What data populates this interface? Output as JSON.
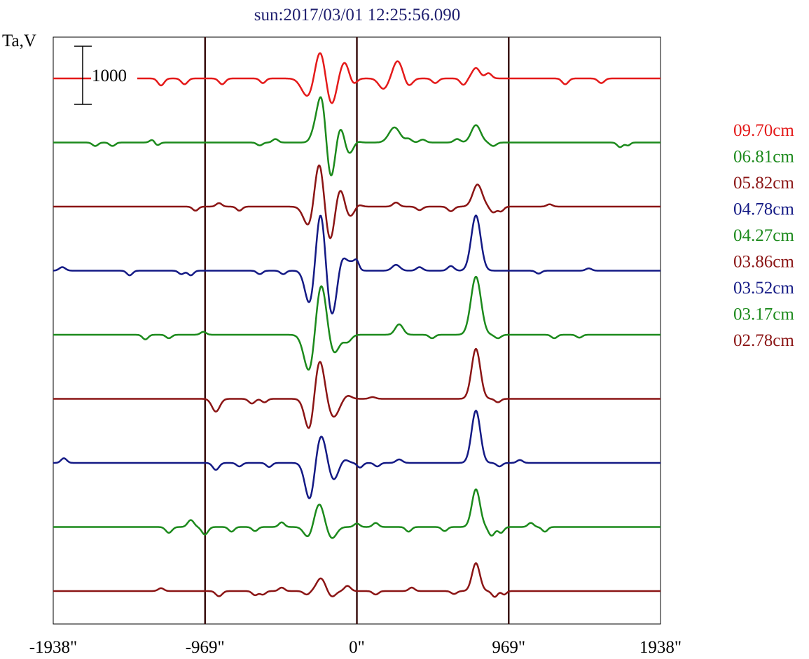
{
  "chart_data": {
    "type": "line",
    "title": "sun:2017/03/01 12:25:56.090",
    "title_color": "#1f1f6f",
    "ylabel": "Ta,V",
    "scale_bar_label": "1000",
    "x_tick_labels": [
      "-1938\"",
      "-969\"",
      "0\"",
      "969\"",
      "1938\""
    ],
    "x_ticks": [
      -1938,
      -969,
      0,
      969,
      1938
    ],
    "xlim": [
      -1938,
      1938
    ],
    "vertical_markers": [
      -969,
      0,
      969
    ],
    "marker_color": "#3a1010",
    "scale_bar_value": 1000,
    "grid": false,
    "legend_placement": "right",
    "series": [
      {
        "name": "09.70cm",
        "color": "#e41a1a",
        "features": [
          {
            "x": -1250,
            "a": -120,
            "w": 20
          },
          {
            "x": -1100,
            "a": -100,
            "w": 20
          },
          {
            "x": -860,
            "a": -100,
            "w": 20
          },
          {
            "x": -600,
            "a": -80,
            "w": 18
          },
          {
            "x": -310,
            "a": -330,
            "w": 40
          },
          {
            "x": -230,
            "a": 620,
            "w": 35
          },
          {
            "x": -165,
            "a": -560,
            "w": 40
          },
          {
            "x": -110,
            "a": 180,
            "w": 30
          },
          {
            "x": -70,
            "a": 250,
            "w": 30
          },
          {
            "x": -30,
            "a": -150,
            "w": 25
          },
          {
            "x": 170,
            "a": -180,
            "w": 30
          },
          {
            "x": 260,
            "a": 300,
            "w": 30
          },
          {
            "x": 330,
            "a": -130,
            "w": 25
          },
          {
            "x": 500,
            "a": -80,
            "w": 20
          },
          {
            "x": 680,
            "a": -110,
            "w": 20
          },
          {
            "x": 760,
            "a": 180,
            "w": 25
          },
          {
            "x": 840,
            "a": 90,
            "w": 20
          },
          {
            "x": 1330,
            "a": -100,
            "w": 20
          },
          {
            "x": 1560,
            "a": -80,
            "w": 20
          }
        ]
      },
      {
        "name": "06.81cm",
        "color": "#1c8a1c",
        "features": [
          {
            "x": -1670,
            "a": -60,
            "w": 18
          },
          {
            "x": -1560,
            "a": -60,
            "w": 18
          },
          {
            "x": -1300,
            "a": 70,
            "w": 18
          },
          {
            "x": -1280,
            "a": -70,
            "w": 18
          },
          {
            "x": -620,
            "a": -50,
            "w": 18
          },
          {
            "x": -520,
            "a": 60,
            "w": 18
          },
          {
            "x": -270,
            "a": 140,
            "w": 25
          },
          {
            "x": -220,
            "a": 1000,
            "w": 30
          },
          {
            "x": -170,
            "a": -900,
            "w": 35
          },
          {
            "x": -110,
            "a": 480,
            "w": 35
          },
          {
            "x": -60,
            "a": -300,
            "w": 30
          },
          {
            "x": 0,
            "a": 30,
            "w": 20
          },
          {
            "x": 240,
            "a": 260,
            "w": 35
          },
          {
            "x": 330,
            "a": 60,
            "w": 20
          },
          {
            "x": 420,
            "a": 50,
            "w": 20
          },
          {
            "x": 640,
            "a": 60,
            "w": 20
          },
          {
            "x": 760,
            "a": 300,
            "w": 30
          },
          {
            "x": 870,
            "a": -60,
            "w": 20
          },
          {
            "x": 1680,
            "a": -80,
            "w": 18
          },
          {
            "x": 1730,
            "a": -50,
            "w": 15
          }
        ]
      },
      {
        "name": "05.82cm",
        "color": "#8b1515",
        "features": [
          {
            "x": -1030,
            "a": -70,
            "w": 18
          },
          {
            "x": -880,
            "a": 60,
            "w": 18
          },
          {
            "x": -750,
            "a": -70,
            "w": 18
          },
          {
            "x": -300,
            "a": -400,
            "w": 35
          },
          {
            "x": -240,
            "a": 900,
            "w": 32
          },
          {
            "x": -170,
            "a": -730,
            "w": 35
          },
          {
            "x": -115,
            "a": 460,
            "w": 32
          },
          {
            "x": -50,
            "a": -200,
            "w": 30
          },
          {
            "x": 10,
            "a": 40,
            "w": 20
          },
          {
            "x": 250,
            "a": 70,
            "w": 20
          },
          {
            "x": 400,
            "a": -60,
            "w": 20
          },
          {
            "x": 600,
            "a": -80,
            "w": 20
          },
          {
            "x": 770,
            "a": 380,
            "w": 30
          },
          {
            "x": 870,
            "a": -100,
            "w": 20
          },
          {
            "x": 920,
            "a": -80,
            "w": 18
          },
          {
            "x": 1230,
            "a": 40,
            "w": 18
          }
        ]
      },
      {
        "name": "04.78cm",
        "color": "#141a85",
        "features": [
          {
            "x": -1880,
            "a": 60,
            "w": 20
          },
          {
            "x": -1450,
            "a": -80,
            "w": 18
          },
          {
            "x": -1120,
            "a": -60,
            "w": 18
          },
          {
            "x": -1060,
            "a": -80,
            "w": 18
          },
          {
            "x": -620,
            "a": -60,
            "w": 18
          },
          {
            "x": -470,
            "a": -60,
            "w": 18
          },
          {
            "x": -300,
            "a": -600,
            "w": 30
          },
          {
            "x": -230,
            "a": 1100,
            "w": 30
          },
          {
            "x": -160,
            "a": -850,
            "w": 35
          },
          {
            "x": -100,
            "a": 320,
            "w": 30
          },
          {
            "x": -30,
            "a": 130,
            "w": 25
          },
          {
            "x": 0,
            "a": 120,
            "w": 15
          },
          {
            "x": 250,
            "a": 100,
            "w": 25
          },
          {
            "x": 400,
            "a": 60,
            "w": 20
          },
          {
            "x": 600,
            "a": 80,
            "w": 20
          },
          {
            "x": 760,
            "a": 950,
            "w": 30
          },
          {
            "x": 1160,
            "a": -50,
            "w": 18
          },
          {
            "x": 1480,
            "a": 40,
            "w": 18
          }
        ]
      },
      {
        "name": "04.27cm",
        "color": "#1c8a1c",
        "features": [
          {
            "x": -1350,
            "a": -80,
            "w": 18
          },
          {
            "x": -1200,
            "a": -60,
            "w": 18
          },
          {
            "x": -980,
            "a": 50,
            "w": 18
          },
          {
            "x": -300,
            "a": -700,
            "w": 35
          },
          {
            "x": -230,
            "a": 950,
            "w": 35
          },
          {
            "x": -150,
            "a": -350,
            "w": 35
          },
          {
            "x": -60,
            "a": -120,
            "w": 25
          },
          {
            "x": 270,
            "a": 180,
            "w": 25
          },
          {
            "x": 480,
            "a": -60,
            "w": 18
          },
          {
            "x": 760,
            "a": 1000,
            "w": 32
          },
          {
            "x": 900,
            "a": -60,
            "w": 20
          },
          {
            "x": 1260,
            "a": -60,
            "w": 18
          },
          {
            "x": 1420,
            "a": -50,
            "w": 18
          }
        ]
      },
      {
        "name": "03.86cm",
        "color": "#8b1515",
        "features": [
          {
            "x": -900,
            "a": -220,
            "w": 25
          },
          {
            "x": -670,
            "a": -80,
            "w": 20
          },
          {
            "x": -590,
            "a": -60,
            "w": 18
          },
          {
            "x": -300,
            "a": -600,
            "w": 30
          },
          {
            "x": -240,
            "a": 720,
            "w": 32
          },
          {
            "x": -150,
            "a": -320,
            "w": 35
          },
          {
            "x": -60,
            "a": 60,
            "w": 25
          },
          {
            "x": 100,
            "a": 30,
            "w": 20
          },
          {
            "x": 760,
            "a": 860,
            "w": 28
          },
          {
            "x": 900,
            "a": -60,
            "w": 18
          }
        ]
      },
      {
        "name": "03.52cm",
        "color": "#141a85",
        "features": [
          {
            "x": -1870,
            "a": 80,
            "w": 18
          },
          {
            "x": -900,
            "a": -120,
            "w": 20
          },
          {
            "x": -750,
            "a": -60,
            "w": 18
          },
          {
            "x": -560,
            "a": -70,
            "w": 18
          },
          {
            "x": -300,
            "a": -650,
            "w": 30
          },
          {
            "x": -230,
            "a": 500,
            "w": 32
          },
          {
            "x": -150,
            "a": -300,
            "w": 30
          },
          {
            "x": -80,
            "a": 60,
            "w": 25
          },
          {
            "x": 20,
            "a": -80,
            "w": 18
          },
          {
            "x": 130,
            "a": -60,
            "w": 18
          },
          {
            "x": 270,
            "a": 60,
            "w": 20
          },
          {
            "x": 760,
            "a": 900,
            "w": 28
          },
          {
            "x": 910,
            "a": -60,
            "w": 18
          },
          {
            "x": 1040,
            "a": 50,
            "w": 18
          }
        ]
      },
      {
        "name": "03.17cm",
        "color": "#1c8a1c",
        "features": [
          {
            "x": -1200,
            "a": -100,
            "w": 20
          },
          {
            "x": -1060,
            "a": 120,
            "w": 20
          },
          {
            "x": -970,
            "a": -130,
            "w": 20
          },
          {
            "x": -800,
            "a": -80,
            "w": 18
          },
          {
            "x": -650,
            "a": -70,
            "w": 18
          },
          {
            "x": -480,
            "a": 80,
            "w": 18
          },
          {
            "x": -310,
            "a": -180,
            "w": 28
          },
          {
            "x": -240,
            "a": 400,
            "w": 30
          },
          {
            "x": -160,
            "a": -200,
            "w": 30
          },
          {
            "x": 0,
            "a": 60,
            "w": 18
          },
          {
            "x": 120,
            "a": 70,
            "w": 18
          },
          {
            "x": 330,
            "a": -80,
            "w": 18
          },
          {
            "x": 560,
            "a": -70,
            "w": 18
          },
          {
            "x": 760,
            "a": 650,
            "w": 26
          },
          {
            "x": 860,
            "a": -150,
            "w": 20
          },
          {
            "x": 920,
            "a": -100,
            "w": 18
          },
          {
            "x": 1110,
            "a": 70,
            "w": 18
          },
          {
            "x": 1200,
            "a": -80,
            "w": 18
          }
        ]
      },
      {
        "name": "02.78cm",
        "color": "#8b1515",
        "features": [
          {
            "x": -1250,
            "a": 50,
            "w": 18
          },
          {
            "x": -880,
            "a": -90,
            "w": 20
          },
          {
            "x": -650,
            "a": -70,
            "w": 18
          },
          {
            "x": -600,
            "a": -60,
            "w": 18
          },
          {
            "x": -480,
            "a": 60,
            "w": 18
          },
          {
            "x": -320,
            "a": -60,
            "w": 20
          },
          {
            "x": -230,
            "a": 220,
            "w": 28
          },
          {
            "x": -160,
            "a": -100,
            "w": 25
          },
          {
            "x": -60,
            "a": 90,
            "w": 20
          },
          {
            "x": 120,
            "a": -60,
            "w": 18
          },
          {
            "x": 350,
            "a": 60,
            "w": 18
          },
          {
            "x": 620,
            "a": -50,
            "w": 18
          },
          {
            "x": 760,
            "a": 480,
            "w": 25
          },
          {
            "x": 880,
            "a": -100,
            "w": 18
          },
          {
            "x": 940,
            "a": -60,
            "w": 15
          }
        ]
      }
    ]
  }
}
